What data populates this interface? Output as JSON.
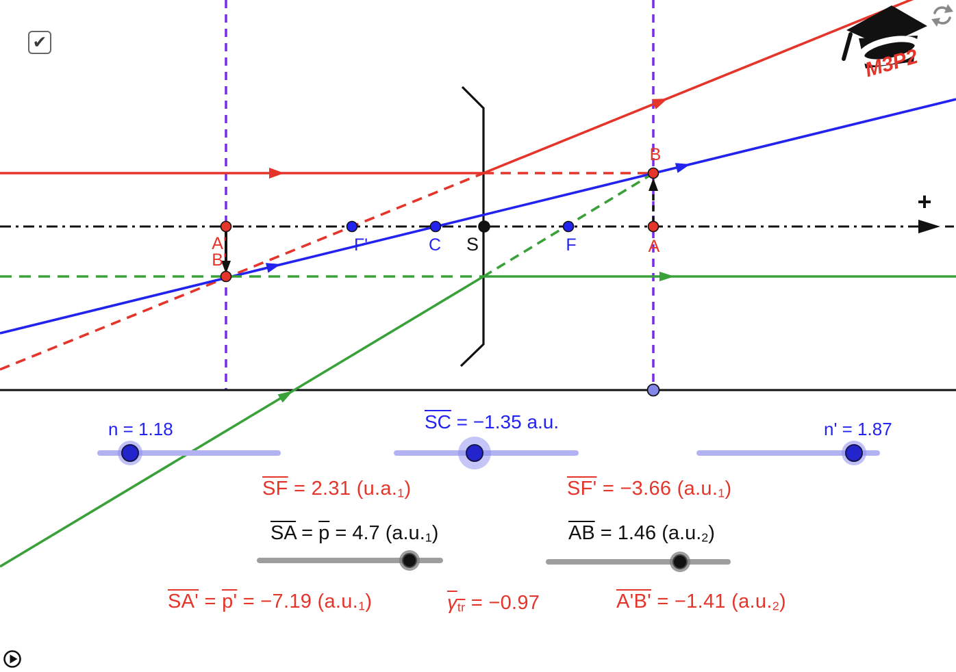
{
  "app": {
    "checkbox_glyph": "✔",
    "logo_text": "M3P2"
  },
  "colors": {
    "red": "#e5352b",
    "blue": "#2323f0",
    "green": "#3aa03a",
    "purple": "#7d2ae8",
    "black": "#111111",
    "slider_track_blue": "#b2b2f2",
    "slider_knob_blue": "#2424cc",
    "slider_track_gray": "#9e9e9e",
    "slider_knob_black": "#111111",
    "drag_point_fill": "#8587e8",
    "refresh_icon_gray": "#8a8a8a"
  },
  "diagram": {
    "plus_sign": "+",
    "points": [
      {
        "id": "a-prime",
        "label": "A'"
      },
      {
        "id": "b-prime",
        "label": "B'"
      },
      {
        "id": "f-prime",
        "label": "F'"
      },
      {
        "id": "c",
        "label": "C"
      },
      {
        "id": "s",
        "label": "S"
      },
      {
        "id": "f",
        "label": "F"
      },
      {
        "id": "a",
        "label": "A"
      },
      {
        "id": "b",
        "label": "B"
      }
    ]
  },
  "sliders": {
    "n": {
      "label": "n = 1.18"
    },
    "sc": {
      "label_parts": [
        {
          "t": "SC",
          "o": 1
        },
        {
          "t": " = −1.35 a.u."
        }
      ]
    },
    "n_prime": {
      "label": "n' = 1.87"
    },
    "sa": {
      "label_parts": [
        {
          "t": "SA",
          "o": 1
        },
        {
          "t": " = "
        },
        {
          "t": "p",
          "o": 1
        },
        {
          "t": " = 4.7 (a.u."
        },
        {
          "t": "1",
          "sub": 1
        },
        {
          "t": ")"
        }
      ]
    },
    "ab": {
      "label_parts": [
        {
          "t": "AB",
          "o": 1
        },
        {
          "t": " =  1.46 (a.u."
        },
        {
          "t": "2",
          "sub": 1
        },
        {
          "t": ")"
        }
      ]
    }
  },
  "readouts": {
    "sf": {
      "parts": [
        {
          "t": "SF",
          "o": 1
        },
        {
          "t": " = 2.31 (u.a."
        },
        {
          "t": "1",
          "sub": 1
        },
        {
          "t": ")"
        }
      ]
    },
    "sf_prime": {
      "parts": [
        {
          "t": "SF'",
          "o": 1
        },
        {
          "t": " = −3.66 (a.u."
        },
        {
          "t": "1",
          "sub": 1
        },
        {
          "t": ")"
        }
      ]
    },
    "sa_prime": {
      "parts": [
        {
          "t": "SA'",
          "o": 1
        },
        {
          "t": " = "
        },
        {
          "t": "p'",
          "o": 1
        },
        {
          "t": " = −7.19 (a.u."
        },
        {
          "t": "1",
          "sub": 1
        },
        {
          "t": ")"
        }
      ]
    },
    "gamma_tr": {
      "parts": [
        {
          "t": "γ",
          "o": 1,
          "i": 1
        },
        {
          "t": "tr",
          "o": 1,
          "sub": 1
        },
        {
          "t": " = −0.97"
        }
      ]
    },
    "a_prime_b_prime": {
      "parts": [
        {
          "t": "A'B'",
          "o": 1
        },
        {
          "t": " = −1.41 (a.u."
        },
        {
          "t": "2",
          "sub": 1
        },
        {
          "t": ")"
        }
      ]
    }
  }
}
